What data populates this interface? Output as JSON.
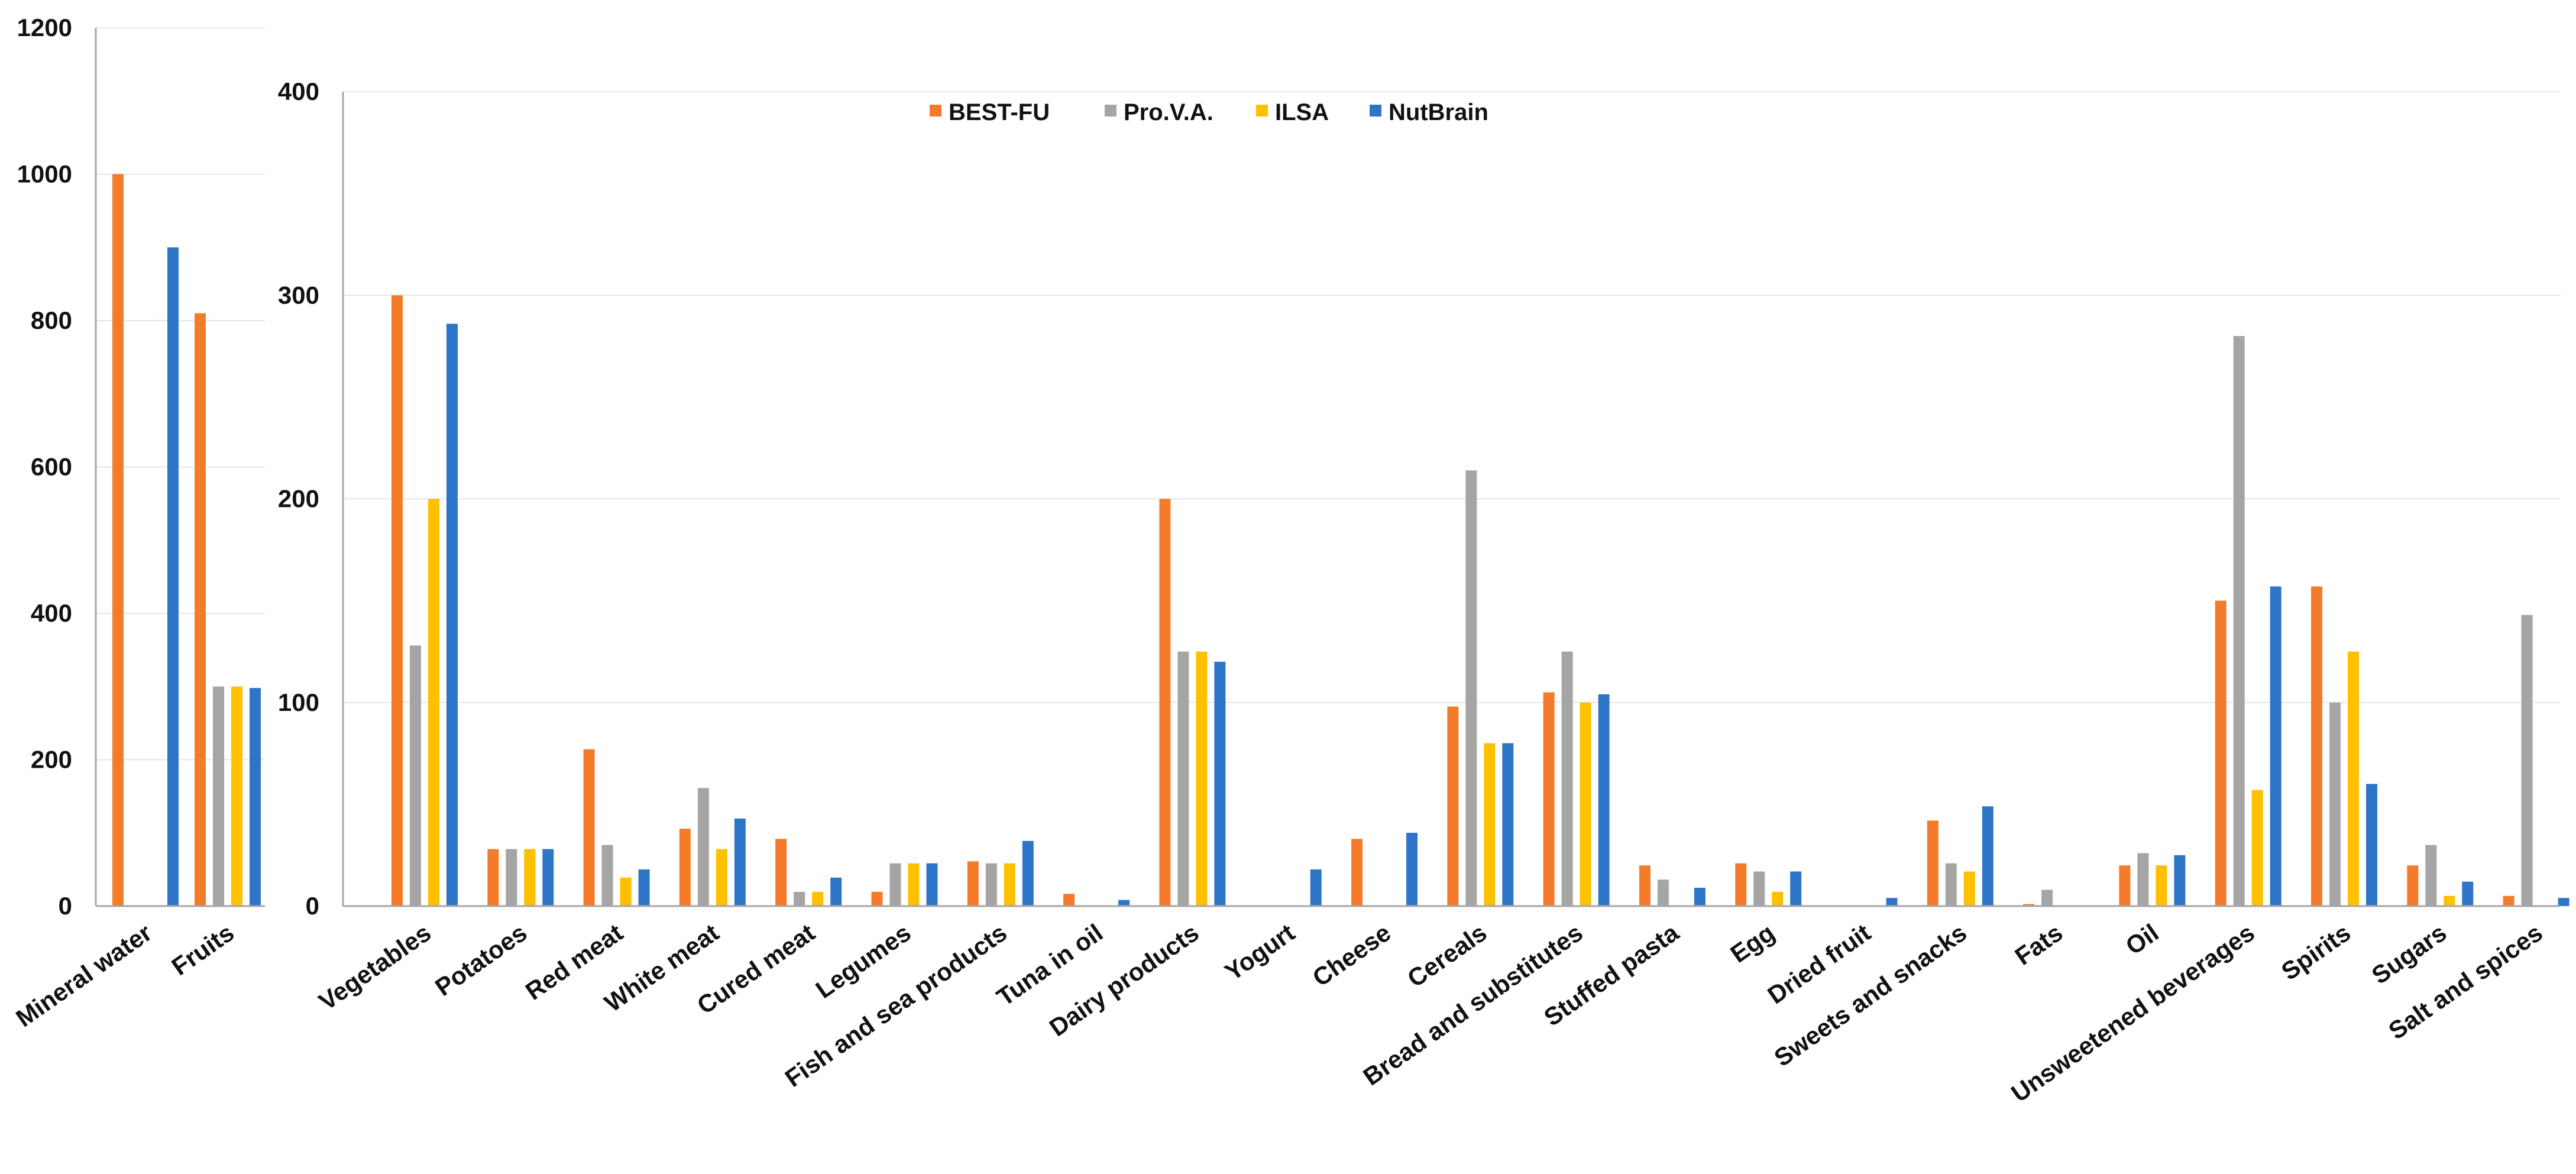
{
  "legend": {
    "placement": "top-center",
    "entries": [
      "BEST-FU",
      "Pro.V.A.",
      "ILSA",
      "NutBrain"
    ]
  },
  "colors": {
    "BEST-FU": "#F47B2A",
    "Pro.V.A.": "#A5A5A5",
    "ILSA": "#FFC000",
    "NutBrain": "#2E75C8",
    "grid": "#E6E6E6",
    "axis": "#A6A6A6"
  },
  "chart_data": [
    {
      "type": "bar",
      "title": "",
      "xlabel": "",
      "ylabel": "",
      "grid": true,
      "ylim": [
        0,
        1200
      ],
      "yticks": [
        0,
        200,
        400,
        600,
        800,
        1000,
        1200
      ],
      "categories": [
        "Mineral water",
        "Fruits"
      ],
      "series": [
        {
          "name": "BEST-FU",
          "values": [
            1000,
            810
          ]
        },
        {
          "name": "Pro.V.A.",
          "values": [
            null,
            300
          ]
        },
        {
          "name": "ILSA",
          "values": [
            null,
            300
          ]
        },
        {
          "name": "NutBrain",
          "values": [
            900,
            298
          ]
        }
      ]
    },
    {
      "type": "bar",
      "title": "",
      "xlabel": "",
      "ylabel": "",
      "grid": true,
      "ylim": [
        0,
        400
      ],
      "yticks": [
        0,
        100,
        200,
        300,
        400
      ],
      "categories": [
        "Vegetables",
        "Potatoes",
        "Red meat",
        "White meat",
        "Cured meat",
        "Legumes",
        "Fish and sea products",
        "Tuna in oil",
        "Dairy products",
        "Yogurt",
        "Cheese",
        "Cereals",
        "Bread and substitutes",
        "Stuffed pasta",
        "Egg",
        "Dried fruit",
        "Sweets and snacks",
        "Fats",
        "Oil",
        "Unsweetened beverages",
        "Spirits",
        "Sugars",
        "Salt and spices"
      ],
      "series": [
        {
          "name": "BEST-FU",
          "values": [
            300,
            28,
            77,
            38,
            33,
            7,
            22,
            6,
            200,
            null,
            33,
            98,
            105,
            20,
            21,
            null,
            42,
            1,
            20,
            150,
            157,
            20,
            5
          ]
        },
        {
          "name": "Pro.V.A.",
          "values": [
            128,
            28,
            30,
            58,
            7,
            21,
            21,
            null,
            125,
            null,
            null,
            214,
            125,
            13,
            17,
            null,
            21,
            8,
            26,
            280,
            100,
            30,
            143
          ]
        },
        {
          "name": "ILSA",
          "values": [
            200,
            28,
            14,
            28,
            7,
            21,
            21,
            null,
            125,
            null,
            null,
            80,
            100,
            null,
            7,
            null,
            17,
            null,
            20,
            57,
            125,
            5,
            null
          ]
        },
        {
          "name": "NutBrain",
          "values": [
            286,
            28,
            18,
            43,
            14,
            21,
            32,
            3,
            120,
            18,
            36,
            80,
            104,
            9,
            17,
            4,
            49,
            null,
            25,
            157,
            60,
            12,
            4
          ]
        }
      ]
    }
  ]
}
